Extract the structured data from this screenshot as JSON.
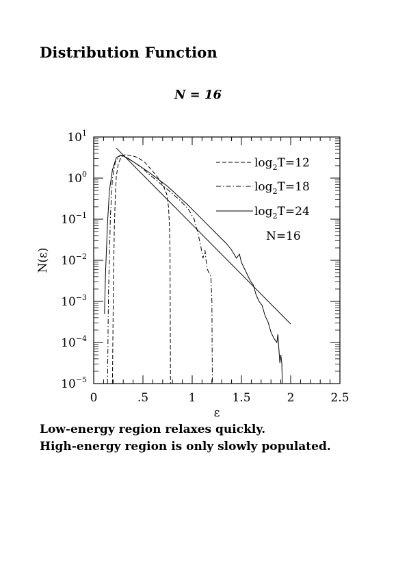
{
  "page": {
    "heading": "Distribution Function",
    "caption_lines": [
      "Low-energy region relaxes quickly.",
      "High-energy region is only slowly populated."
    ]
  },
  "chart_data": {
    "type": "line",
    "title": "N = 16",
    "xlabel": "ε",
    "ylabel": "N(ε)",
    "xlim": [
      0,
      2.5
    ],
    "ylim_log10": [
      -5,
      1
    ],
    "yscale": "log",
    "x_ticks": [
      {
        "value": 0,
        "label": "0"
      },
      {
        "value": 0.5,
        "label": ".5"
      },
      {
        "value": 1,
        "label": "1"
      },
      {
        "value": 1.5,
        "label": "1.5"
      },
      {
        "value": 2,
        "label": "2"
      },
      {
        "value": 2.5,
        "label": "2.5"
      }
    ],
    "y_ticks": [
      {
        "exp": 1,
        "base": "10",
        "sup": "1"
      },
      {
        "exp": 0,
        "base": "10",
        "sup": "0"
      },
      {
        "exp": -1,
        "base": "10",
        "sup": "−1"
      },
      {
        "exp": -2,
        "base": "10",
        "sup": "−2"
      },
      {
        "exp": -3,
        "base": "10",
        "sup": "−3"
      },
      {
        "exp": -4,
        "base": "10",
        "sup": "−4"
      },
      {
        "exp": -5,
        "base": "10",
        "sup": "−5"
      }
    ],
    "legend": {
      "position": "top-right",
      "entries": [
        {
          "prefix": "log",
          "sub": "2",
          "suffix": "T=12",
          "series": 0
        },
        {
          "prefix": "log",
          "sub": "2",
          "suffix": "T=18",
          "series": 1
        },
        {
          "prefix": "log",
          "sub": "2",
          "suffix": "T=24",
          "series": 2
        }
      ],
      "note": "N=16"
    },
    "series": [
      {
        "name": "log2T=12",
        "dash": "dashed",
        "points": [
          [
            0.19,
            -5.0
          ],
          [
            0.2,
            -2.6
          ],
          [
            0.21,
            -1.2
          ],
          [
            0.22,
            -0.4
          ],
          [
            0.23,
            0.05
          ],
          [
            0.25,
            0.35
          ],
          [
            0.28,
            0.52
          ],
          [
            0.32,
            0.57
          ],
          [
            0.38,
            0.55
          ],
          [
            0.45,
            0.5
          ],
          [
            0.52,
            0.38
          ],
          [
            0.58,
            0.22
          ],
          [
            0.64,
            0.05
          ],
          [
            0.7,
            -0.15
          ],
          [
            0.74,
            -0.38
          ],
          [
            0.76,
            -0.7
          ],
          [
            0.77,
            -1.2
          ],
          [
            0.775,
            -1.8
          ],
          [
            0.78,
            -5.0
          ]
        ]
      },
      {
        "name": "log2T=18",
        "dash": "dashdot",
        "points": [
          [
            0.14,
            -5.0
          ],
          [
            0.15,
            -2.8
          ],
          [
            0.17,
            -0.9
          ],
          [
            0.19,
            0.0
          ],
          [
            0.22,
            0.4
          ],
          [
            0.27,
            0.56
          ],
          [
            0.33,
            0.5
          ],
          [
            0.4,
            0.4
          ],
          [
            0.48,
            0.27
          ],
          [
            0.56,
            0.1
          ],
          [
            0.64,
            -0.06
          ],
          [
            0.72,
            -0.22
          ],
          [
            0.8,
            -0.38
          ],
          [
            0.88,
            -0.55
          ],
          [
            0.96,
            -0.75
          ],
          [
            1.02,
            -1.0
          ],
          [
            1.06,
            -1.35
          ],
          [
            1.09,
            -1.7
          ],
          [
            1.11,
            -1.95
          ],
          [
            1.13,
            -1.75
          ],
          [
            1.15,
            -2.2
          ],
          [
            1.17,
            -2.3
          ],
          [
            1.19,
            -2.4
          ],
          [
            1.2,
            -3.0
          ],
          [
            1.205,
            -5.0
          ]
        ]
      },
      {
        "name": "log2T=24",
        "dash": "solid",
        "points": [
          [
            0.11,
            -3.3
          ],
          [
            0.12,
            -2.3
          ],
          [
            0.14,
            -1.1
          ],
          [
            0.16,
            -0.3
          ],
          [
            0.19,
            0.2
          ],
          [
            0.23,
            0.5
          ],
          [
            0.28,
            0.56
          ],
          [
            0.35,
            0.48
          ],
          [
            0.45,
            0.32
          ],
          [
            0.55,
            0.16
          ],
          [
            0.65,
            -0.02
          ],
          [
            0.75,
            -0.2
          ],
          [
            0.85,
            -0.42
          ],
          [
            0.95,
            -0.64
          ],
          [
            1.05,
            -0.88
          ],
          [
            1.15,
            -1.12
          ],
          [
            1.25,
            -1.36
          ],
          [
            1.35,
            -1.6
          ],
          [
            1.4,
            -1.75
          ],
          [
            1.45,
            -1.95
          ],
          [
            1.48,
            -1.85
          ],
          [
            1.5,
            -2.05
          ],
          [
            1.53,
            -2.2
          ],
          [
            1.56,
            -2.35
          ],
          [
            1.59,
            -2.5
          ],
          [
            1.62,
            -2.6
          ],
          [
            1.65,
            -2.85
          ],
          [
            1.68,
            -3.0
          ],
          [
            1.71,
            -3.1
          ],
          [
            1.74,
            -3.35
          ],
          [
            1.77,
            -3.5
          ],
          [
            1.8,
            -3.75
          ],
          [
            1.83,
            -3.9
          ],
          [
            1.86,
            -4.0
          ],
          [
            1.87,
            -3.8
          ],
          [
            1.89,
            -4.5
          ],
          [
            1.9,
            -4.3
          ],
          [
            1.91,
            -4.5
          ],
          [
            1.915,
            -5.0
          ]
        ]
      },
      {
        "name": "fit",
        "dash": "solid",
        "points": [
          [
            0.23,
            0.73
          ],
          [
            2.0,
            -3.55
          ]
        ]
      }
    ]
  }
}
